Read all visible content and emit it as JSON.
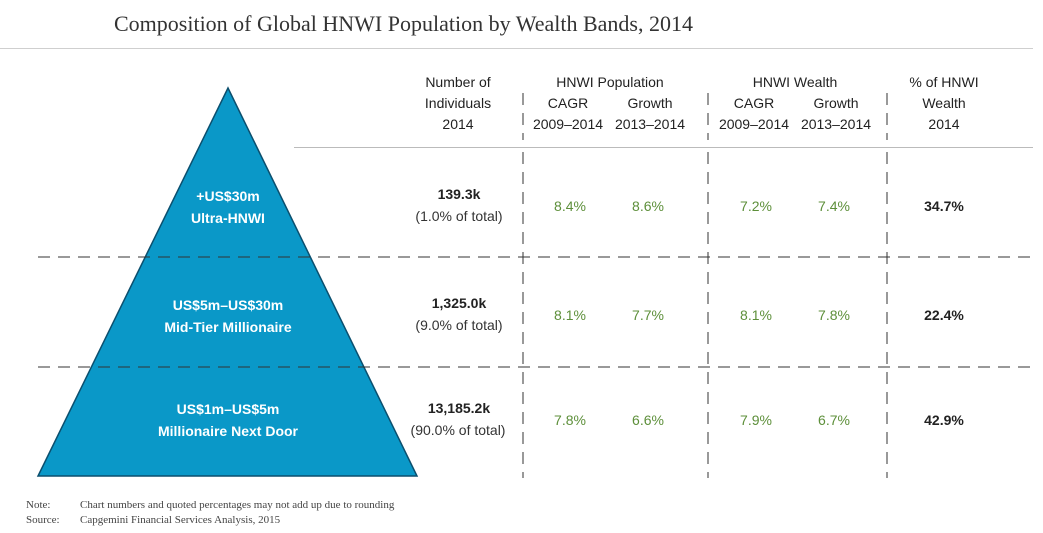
{
  "title": "Composition of Global HNWI Population by Wealth Bands, 2014",
  "headers": {
    "individuals": [
      "Number of",
      "Individuals",
      "2014"
    ],
    "population_group": "HNWI Population",
    "population_cagr": [
      "CAGR",
      "2009–2014"
    ],
    "population_growth": [
      "Growth",
      "2013–2014"
    ],
    "wealth_group": "HNWI  Wealth",
    "wealth_cagr": [
      "CAGR",
      "2009–2014"
    ],
    "wealth_growth": [
      "Growth",
      "2013–2014"
    ],
    "share": [
      "% of HNWI",
      "Wealth",
      "2014"
    ]
  },
  "chart_data": {
    "type": "table",
    "title": "Composition of Global HNWI Population by Wealth Bands, 2014",
    "rows": [
      {
        "band": "+US$30m",
        "tier": "Ultra-HNWI",
        "individuals": "139.3k",
        "individuals_share": "(1.0% of total)",
        "pop_cagr": "8.4%",
        "pop_growth": "8.6%",
        "wealth_cagr": "7.2%",
        "wealth_growth": "7.4%",
        "wealth_share": "34.7%"
      },
      {
        "band": "US$5m–US$30m",
        "tier": "Mid-Tier Millionaire",
        "individuals": "1,325.0k",
        "individuals_share": "(9.0% of total)",
        "pop_cagr": "8.1%",
        "pop_growth": "7.7%",
        "wealth_cagr": "8.1%",
        "wealth_growth": "7.8%",
        "wealth_share": "22.4%"
      },
      {
        "band": "US$1m–US$5m",
        "tier": "Millionaire Next Door",
        "individuals": "13,185.2k",
        "individuals_share": "(90.0% of total)",
        "pop_cagr": "7.8%",
        "pop_growth": "6.6%",
        "wealth_cagr": "7.9%",
        "wealth_growth": "6.7%",
        "wealth_share": "42.9%"
      }
    ]
  },
  "notes": {
    "note_label": "Note:",
    "note_text": "Chart numbers and quoted percentages may not add up due to rounding",
    "source_label": "Source:",
    "source_text": "Capgemini Financial Services Analysis, 2015"
  },
  "colors": {
    "pyramid": "#0a98c8",
    "pyramid_stroke": "#0b4f6e",
    "growth_text": "#5d8f3a"
  }
}
